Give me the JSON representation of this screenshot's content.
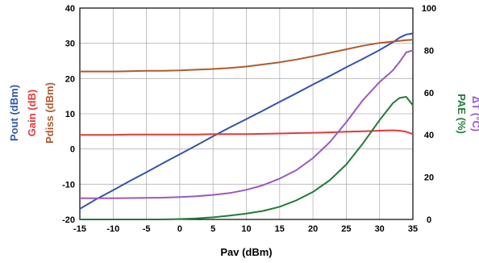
{
  "chart_data": {
    "type": "line",
    "xlabel": "Pav (dBm)",
    "xlim": [
      -15,
      35
    ],
    "xticks": [
      -15,
      -10,
      -5,
      0,
      5,
      10,
      15,
      20,
      25,
      30,
      35
    ],
    "grid": true,
    "left_axis": {
      "ylim": [
        -20,
        40
      ],
      "ticks": [
        -20,
        -10,
        0,
        10,
        20,
        30,
        40
      ],
      "labels": [
        {
          "text": "Pout (dBm)",
          "color": "#3355a8"
        },
        {
          "text": "Gain (dB)",
          "color": "#e23a3a"
        },
        {
          "text": "Pdiss (dBm)",
          "color": "#b05a2e"
        }
      ]
    },
    "right_axis": {
      "ylim": [
        0,
        100
      ],
      "ticks": [
        0,
        20,
        40,
        60,
        80,
        100
      ],
      "labels": [
        {
          "text": "PAE (%)",
          "color": "#237a3b"
        },
        {
          "text": "ΔT (°C)",
          "color": "#9b59c2"
        }
      ]
    },
    "x": [
      -15,
      -12.5,
      -10,
      -7.5,
      -5,
      -2.5,
      0,
      2.5,
      5,
      7.5,
      10,
      12.5,
      15,
      17.5,
      20,
      22.5,
      25,
      27.5,
      30,
      32,
      33,
      34,
      35
    ],
    "series": [
      {
        "axis": "left",
        "color": "#3355a8",
        "values": [
          -17,
          -14.2,
          -11.7,
          -9.1,
          -6.6,
          -4.0,
          -1.5,
          1.0,
          3.6,
          6.1,
          8.5,
          10.9,
          13.4,
          15.8,
          18.3,
          20.7,
          23.2,
          25.6,
          28.1,
          30.3,
          31.6,
          32.5,
          32.8
        ]
      },
      {
        "axis": "left",
        "color": "#e23a3a",
        "values": [
          4.0,
          4.0,
          4.0,
          4.1,
          4.1,
          4.1,
          4.1,
          4.1,
          4.2,
          4.2,
          4.2,
          4.3,
          4.4,
          4.5,
          4.6,
          4.7,
          4.9,
          5.0,
          5.2,
          5.3,
          5.2,
          4.9,
          4.2
        ]
      },
      {
        "axis": "left",
        "color": "#b05a2e",
        "values": [
          22.0,
          22.0,
          22.0,
          22.1,
          22.2,
          22.2,
          22.3,
          22.5,
          22.7,
          23.0,
          23.4,
          24.0,
          24.6,
          25.4,
          26.3,
          27.3,
          28.3,
          29.3,
          30.1,
          30.5,
          30.7,
          30.9,
          31.0
        ]
      },
      {
        "axis": "right",
        "color": "#237a3b",
        "values": [
          0,
          0,
          0,
          0,
          0,
          0,
          0.2,
          0.5,
          1.0,
          1.8,
          2.8,
          4.0,
          6.0,
          9.0,
          13.0,
          18.5,
          26.0,
          36.0,
          47.0,
          55.0,
          57.5,
          58.0,
          54.0
        ]
      },
      {
        "axis": "right",
        "color": "#9b59c2",
        "values": [
          10.0,
          10.0,
          10.0,
          10.1,
          10.2,
          10.3,
          10.6,
          11.0,
          11.6,
          12.5,
          14.0,
          16.2,
          19.3,
          23.3,
          29.0,
          36.5,
          46.0,
          56.5,
          65.0,
          70.5,
          74.5,
          79.0,
          80.0
        ]
      }
    ]
  }
}
